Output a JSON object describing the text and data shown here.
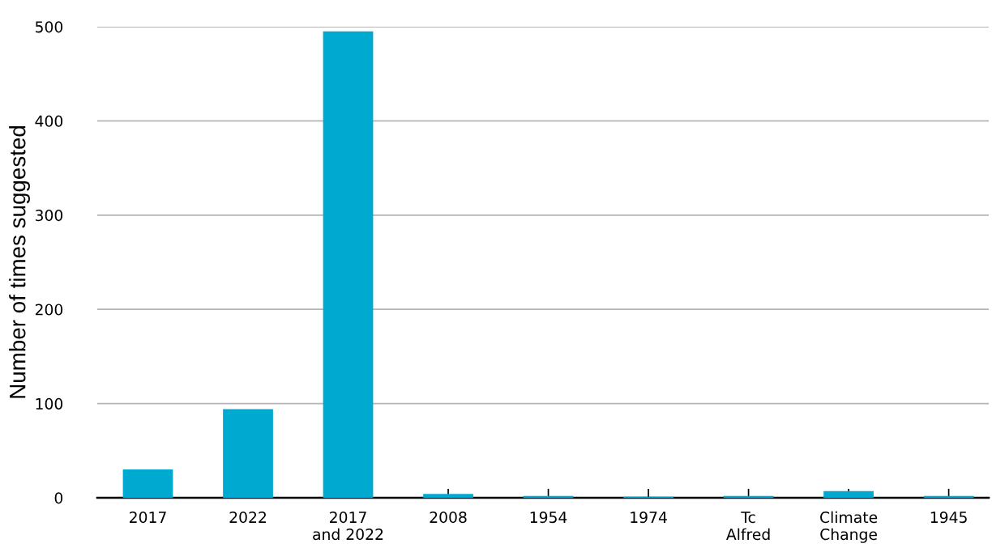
{
  "chart_data": {
    "type": "bar",
    "ylabel": "Number of times suggested",
    "categories": [
      "2017",
      "2022",
      "2017\nand 2022",
      "2008",
      "1954",
      "1974",
      "Tc\nAlfred",
      "Climate\nChange",
      "1945"
    ],
    "values": [
      30,
      94,
      495,
      4,
      2,
      1,
      2,
      7,
      2
    ],
    "color": "#00a9cf",
    "ylim": [
      0,
      500
    ],
    "yticks": [
      0,
      100,
      200,
      300,
      400,
      500
    ],
    "grid": "y",
    "legend": false
  }
}
